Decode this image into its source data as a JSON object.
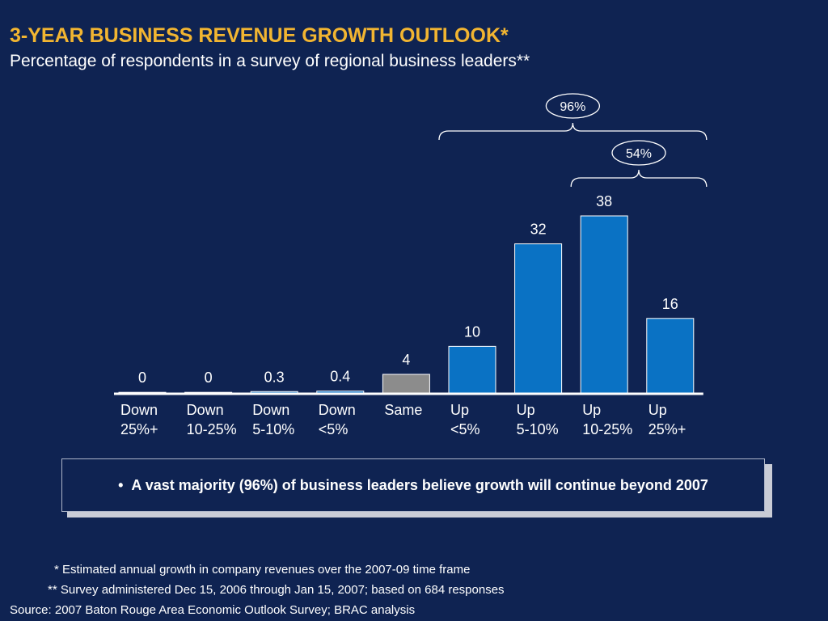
{
  "chart_data": {
    "type": "bar",
    "title": "3-YEAR BUSINESS REVENUE GROWTH OUTLOOK*",
    "subtitle": "Percentage of respondents in a survey of regional business leaders**",
    "categories": [
      [
        "Down",
        "25%+"
      ],
      [
        "Down",
        "10-25%"
      ],
      [
        "Down",
        "5-10%"
      ],
      [
        "Down",
        "<5%"
      ],
      [
        "Same",
        ""
      ],
      [
        "Up",
        "<5%"
      ],
      [
        "Up",
        "5-10%"
      ],
      [
        "Up",
        "10-25%"
      ],
      [
        "Up",
        "25%+"
      ]
    ],
    "values": [
      0,
      0,
      0.3,
      0.4,
      4,
      10,
      32,
      38,
      16
    ],
    "value_labels": [
      "0",
      "0",
      "0.3",
      "0.4",
      "4",
      "10",
      "32",
      "38",
      "16"
    ],
    "bar_colors": [
      "#0a72c4",
      "#0a72c4",
      "#0a72c4",
      "#0a72c4",
      "#8c8c8c",
      "#0a72c4",
      "#0a72c4",
      "#0a72c4",
      "#0a72c4"
    ],
    "ylim": [
      0,
      38
    ],
    "grid": false,
    "annotations": [
      {
        "label": "96%",
        "from_index": 5,
        "to_index": 8
      },
      {
        "label": "54%",
        "from_index": 7,
        "to_index": 8
      }
    ]
  },
  "callout": {
    "bullet": "•",
    "text": "A vast majority (96%) of business leaders believe growth will continue beyond 2007"
  },
  "footnotes": {
    "note1": "* Estimated annual growth in company revenues over the 2007-09 time frame",
    "note2": "** Survey administered Dec 15, 2006 through Jan 15, 2007; based on 684 responses",
    "source": "Source: 2007 Baton Rouge Area Economic Outlook Survey; BRAC analysis"
  },
  "colors": {
    "background": "#0f2352",
    "title": "#f2b531",
    "bar": "#0a72c4",
    "bar_neutral": "#8c8c8c"
  }
}
